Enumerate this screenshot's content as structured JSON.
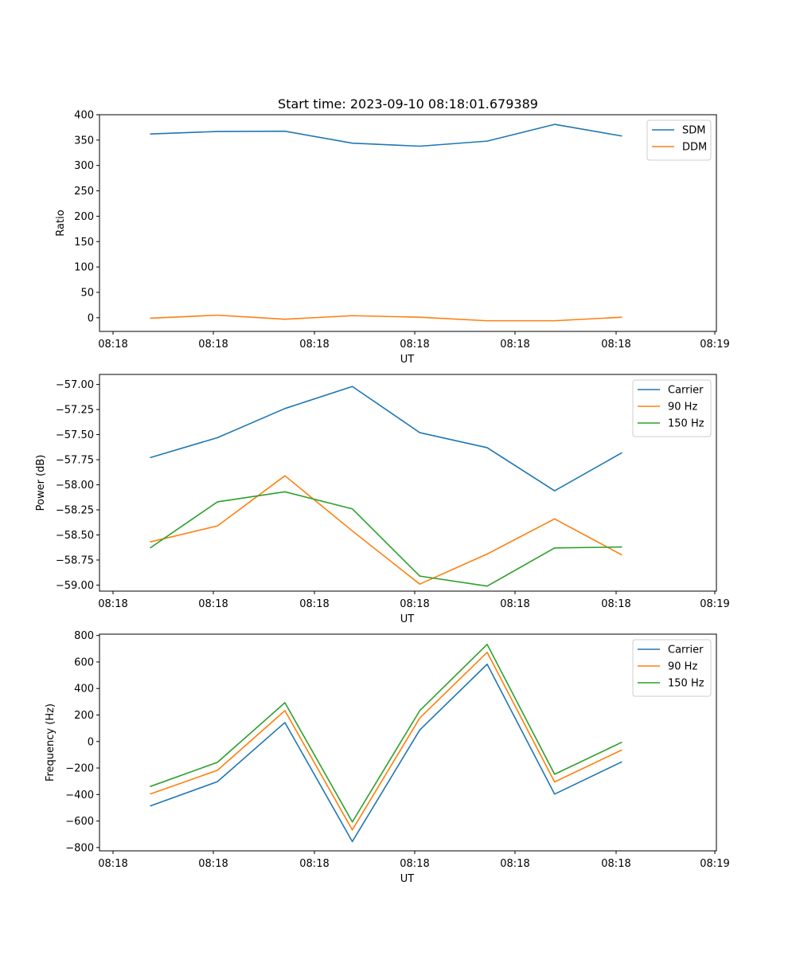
{
  "figure": {
    "title": "Start time: 2023-09-10 08:18:01.679389"
  },
  "chart_data": [
    {
      "type": "line",
      "title": "Start time: 2023-09-10 08:18:01.679389",
      "xlabel": "UT",
      "ylabel": "Ratio",
      "x_tick_labels": [
        "08:18",
        "08:18",
        "08:18",
        "08:18",
        "08:18",
        "08:18",
        "08:18"
      ],
      "x_last_tick_label": "08:19",
      "x": [
        0,
        1,
        2,
        3,
        4,
        5,
        6,
        7
      ],
      "xlim": [
        -0.75,
        8.4
      ],
      "ylim": [
        -27,
        400
      ],
      "yticks": [
        0,
        50,
        100,
        150,
        200,
        250,
        300,
        350,
        400
      ],
      "ytick_labels": [
        "0",
        "50",
        "100",
        "150",
        "200",
        "250",
        "300",
        "350",
        "400"
      ],
      "legend_position": "top-right",
      "series": [
        {
          "name": "SDM",
          "color": "#1f77b4",
          "values": [
            362,
            367,
            367.5,
            344,
            338,
            348,
            381,
            358
          ]
        },
        {
          "name": "DDM",
          "color": "#ff7f0e",
          "values": [
            -1,
            5,
            -3,
            4,
            1,
            -6,
            -6,
            1
          ]
        }
      ]
    },
    {
      "type": "line",
      "title": "",
      "xlabel": "UT",
      "ylabel": "Power (dB)",
      "x_tick_labels": [
        "08:18",
        "08:18",
        "08:18",
        "08:18",
        "08:18",
        "08:18",
        "08:18"
      ],
      "x_last_tick_label": "08:19",
      "x": [
        0,
        1,
        2,
        3,
        4,
        5,
        6,
        7
      ],
      "xlim": [
        -0.75,
        8.4
      ],
      "ylim": [
        -59.06,
        -56.9
      ],
      "yticks": [
        -59.0,
        -58.75,
        -58.5,
        -58.25,
        -58.0,
        -57.75,
        -57.5,
        -57.25,
        -57.0
      ],
      "ytick_labels": [
        "−59.00",
        "−58.75",
        "−58.50",
        "−58.25",
        "−58.00",
        "−57.75",
        "−57.50",
        "−57.25",
        "−57.00"
      ],
      "legend_position": "top-right",
      "series": [
        {
          "name": "Carrier",
          "color": "#1f77b4",
          "values": [
            -57.73,
            -57.53,
            -57.24,
            -57.02,
            -57.48,
            -57.63,
            -58.06,
            -57.68
          ]
        },
        {
          "name": "90 Hz",
          "color": "#ff7f0e",
          "values": [
            -58.57,
            -58.41,
            -57.91,
            -58.46,
            -58.99,
            -58.69,
            -58.34,
            -58.7
          ]
        },
        {
          "name": "150 Hz",
          "color": "#2ca02c",
          "values": [
            -58.63,
            -58.17,
            -58.07,
            -58.24,
            -58.91,
            -59.01,
            -58.63,
            -58.62
          ]
        }
      ]
    },
    {
      "type": "line",
      "title": "",
      "xlabel": "UT",
      "ylabel": "Frequency (Hz)",
      "x_tick_labels": [
        "08:18",
        "08:18",
        "08:18",
        "08:18",
        "08:18",
        "08:18",
        "08:18"
      ],
      "x_last_tick_label": "08:19",
      "x": [
        0,
        1,
        2,
        3,
        4,
        5,
        6,
        7
      ],
      "xlim": [
        -0.75,
        8.4
      ],
      "ylim": [
        -825,
        810
      ],
      "yticks": [
        -800,
        -600,
        -400,
        -200,
        0,
        200,
        400,
        600,
        800
      ],
      "ytick_labels": [
        "−800",
        "−600",
        "−400",
        "−200",
        "0",
        "200",
        "400",
        "600",
        "800"
      ],
      "legend_position": "top-right",
      "series": [
        {
          "name": "Carrier",
          "color": "#1f77b4",
          "values": [
            -487,
            -303,
            143,
            -755,
            87,
            583,
            -397,
            -153
          ]
        },
        {
          "name": "90 Hz",
          "color": "#ff7f0e",
          "values": [
            -397,
            -217,
            233,
            -667,
            177,
            673,
            -305,
            -63
          ]
        },
        {
          "name": "150 Hz",
          "color": "#2ca02c",
          "values": [
            -340,
            -157,
            293,
            -607,
            233,
            733,
            -247,
            -5
          ]
        }
      ]
    }
  ]
}
